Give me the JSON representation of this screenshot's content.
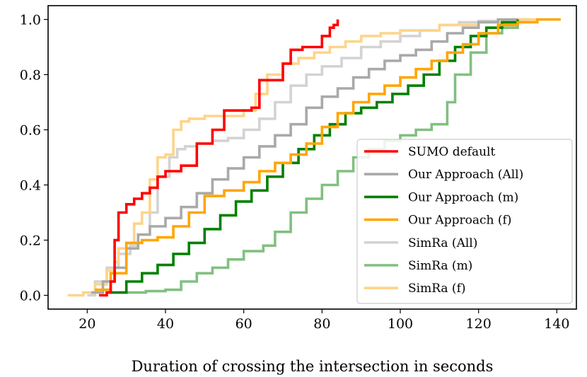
{
  "chart_data": {
    "type": "line",
    "title": "",
    "xlabel": "Duration of crossing the intersection in seconds",
    "ylabel": "",
    "xlim": [
      10,
      145
    ],
    "ylim": [
      -0.05,
      1.05
    ],
    "xticks": [
      20,
      40,
      60,
      80,
      100,
      120,
      140
    ],
    "yticks": [
      0.0,
      0.2,
      0.4,
      0.6,
      0.8,
      1.0
    ],
    "xtick_labels": [
      "20",
      "40",
      "60",
      "80",
      "100",
      "120",
      "140"
    ],
    "ytick_labels": [
      "0.0",
      "0.2",
      "0.4",
      "0.6",
      "0.8",
      "1.0"
    ],
    "grid": false,
    "legend_position": "lower-right",
    "series": [
      {
        "name": "SimRa (All)",
        "color": "#d3d3d3",
        "x": [
          20,
          22,
          25,
          28,
          31,
          33,
          36,
          38,
          41,
          43,
          45,
          48,
          52,
          56,
          60,
          64,
          68,
          72,
          76,
          80,
          85,
          90,
          95,
          100,
          105,
          110,
          115,
          120,
          125
        ],
        "y": [
          0.0,
          0.05,
          0.1,
          0.15,
          0.18,
          0.22,
          0.3,
          0.43,
          0.5,
          0.53,
          0.54,
          0.55,
          0.56,
          0.57,
          0.6,
          0.64,
          0.7,
          0.76,
          0.8,
          0.83,
          0.86,
          0.9,
          0.92,
          0.94,
          0.96,
          0.98,
          0.99,
          0.995,
          1.0
        ]
      },
      {
        "name": "SimRa (m)",
        "color": "#80c080",
        "x": [
          28,
          35,
          40,
          44,
          48,
          52,
          56,
          60,
          65,
          68,
          72,
          76,
          80,
          84,
          88,
          92,
          96,
          100,
          104,
          108,
          112,
          114,
          118,
          122,
          126,
          130,
          133
        ],
        "y": [
          0.01,
          0.015,
          0.02,
          0.05,
          0.08,
          0.1,
          0.13,
          0.16,
          0.18,
          0.23,
          0.3,
          0.35,
          0.4,
          0.45,
          0.5,
          0.53,
          0.56,
          0.58,
          0.6,
          0.62,
          0.7,
          0.8,
          0.88,
          0.95,
          0.97,
          1.0,
          1.0
        ]
      },
      {
        "name": "SimRa (f)",
        "color": "#fed48a",
        "x": [
          15,
          19,
          22,
          25,
          27,
          28,
          30,
          32,
          34,
          36,
          38,
          40,
          42,
          44,
          46,
          50,
          55,
          60,
          63,
          66,
          70,
          74,
          78,
          82,
          86,
          90,
          95,
          100,
          110,
          120,
          130,
          135
        ],
        "y": [
          0.0,
          0.01,
          0.04,
          0.09,
          0.12,
          0.17,
          0.19,
          0.26,
          0.3,
          0.42,
          0.5,
          0.51,
          0.6,
          0.63,
          0.64,
          0.65,
          0.65,
          0.67,
          0.73,
          0.8,
          0.84,
          0.86,
          0.88,
          0.9,
          0.92,
          0.94,
          0.95,
          0.96,
          0.98,
          0.99,
          1.0,
          1.0
        ]
      },
      {
        "name": "Our Approach (All)",
        "color": "#a9a9a9",
        "x": [
          21,
          24,
          27,
          30,
          33,
          36,
          40,
          44,
          48,
          52,
          56,
          60,
          64,
          68,
          72,
          76,
          80,
          84,
          88,
          92,
          96,
          100,
          104,
          108,
          112,
          116,
          120,
          125,
          130
        ],
        "y": [
          0.01,
          0.05,
          0.1,
          0.17,
          0.22,
          0.25,
          0.28,
          0.32,
          0.37,
          0.42,
          0.46,
          0.5,
          0.54,
          0.58,
          0.62,
          0.68,
          0.72,
          0.75,
          0.79,
          0.82,
          0.85,
          0.87,
          0.89,
          0.92,
          0.95,
          0.97,
          0.99,
          1.0,
          1.0
        ]
      },
      {
        "name": "Our Approach (m)",
        "color": "#008000",
        "x": [
          26,
          30,
          34,
          38,
          42,
          46,
          50,
          54,
          58,
          62,
          66,
          70,
          74,
          78,
          82,
          86,
          90,
          94,
          98,
          102,
          106,
          110,
          114,
          118,
          122,
          126,
          130
        ],
        "y": [
          0.01,
          0.05,
          0.08,
          0.11,
          0.15,
          0.19,
          0.24,
          0.29,
          0.34,
          0.38,
          0.43,
          0.48,
          0.53,
          0.58,
          0.62,
          0.66,
          0.68,
          0.7,
          0.73,
          0.76,
          0.8,
          0.85,
          0.9,
          0.94,
          0.97,
          0.99,
          1.0
        ]
      },
      {
        "name": "Our Approach (f)",
        "color": "#ffa500",
        "x": [
          22,
          26,
          30,
          34,
          38,
          42,
          46,
          50,
          55,
          60,
          64,
          68,
          72,
          76,
          80,
          84,
          88,
          92,
          96,
          100,
          104,
          108,
          112,
          116,
          120,
          125,
          130,
          135,
          141
        ],
        "y": [
          0.02,
          0.08,
          0.19,
          0.2,
          0.21,
          0.25,
          0.3,
          0.36,
          0.38,
          0.41,
          0.45,
          0.48,
          0.51,
          0.55,
          0.61,
          0.66,
          0.7,
          0.73,
          0.76,
          0.79,
          0.82,
          0.85,
          0.88,
          0.91,
          0.95,
          0.98,
          0.99,
          1.0,
          1.0
        ]
      },
      {
        "name": "SUMO default",
        "color": "#ff0000",
        "x": [
          23,
          25,
          26,
          27,
          28,
          30,
          32,
          34,
          36,
          38,
          40,
          44,
          48,
          52,
          55,
          58,
          60,
          62,
          64,
          66,
          68,
          70,
          72,
          75,
          78,
          80,
          82,
          83,
          84
        ],
        "y": [
          0.0,
          0.01,
          0.05,
          0.2,
          0.3,
          0.33,
          0.35,
          0.37,
          0.39,
          0.43,
          0.45,
          0.47,
          0.55,
          0.6,
          0.67,
          0.67,
          0.67,
          0.68,
          0.78,
          0.78,
          0.78,
          0.84,
          0.89,
          0.9,
          0.9,
          0.94,
          0.97,
          0.98,
          1.0
        ]
      }
    ],
    "legend_order": [
      "SUMO default",
      "Our Approach (All)",
      "Our Approach (m)",
      "Our Approach (f)",
      "SimRa (All)",
      "SimRa (m)",
      "SimRa (f)"
    ]
  }
}
